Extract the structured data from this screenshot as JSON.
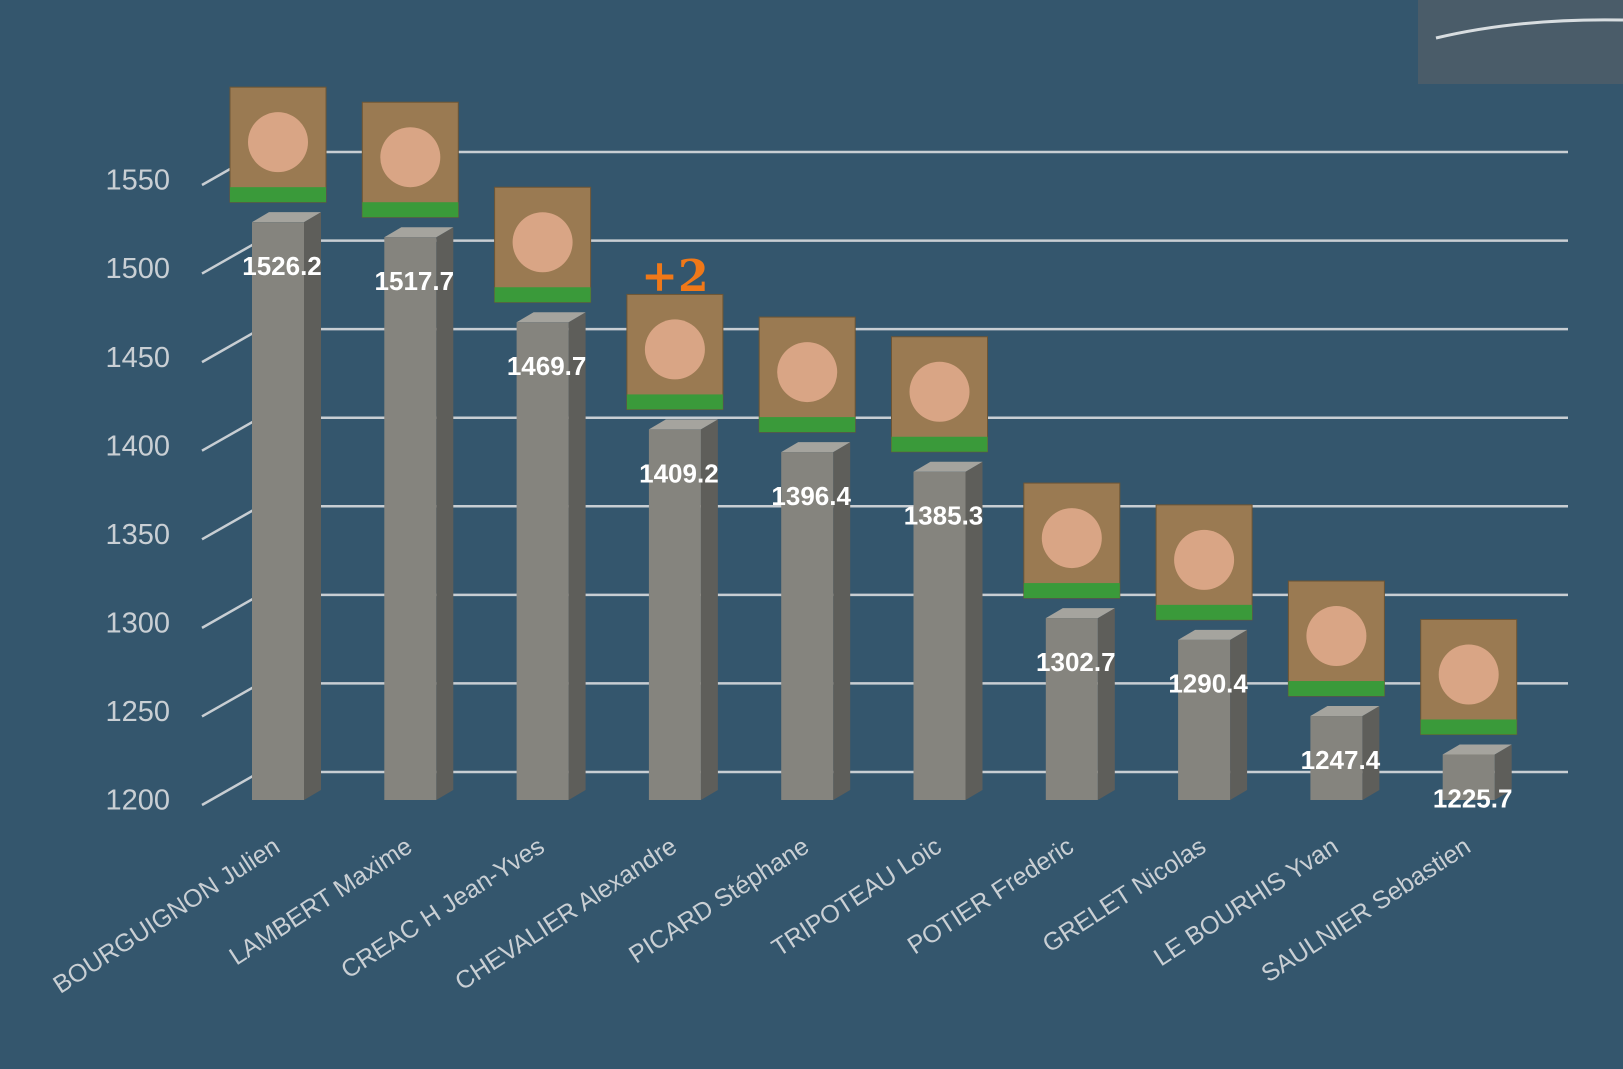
{
  "chart_data": {
    "type": "bar",
    "categories": [
      "BOURGUIGNON Julien",
      "LAMBERT Maxime",
      "CREAC H Jean-Yves",
      "CHEVALIER Alexandre",
      "PICARD Stéphane",
      "TRIPOTEAU Loic",
      "POTIER Frederic",
      "GRELET Nicolas",
      "LE BOURHIS Yvan",
      "SAULNIER Sebastien"
    ],
    "values": [
      1526.2,
      1517.7,
      1469.7,
      1409.2,
      1396.4,
      1385.3,
      1302.7,
      1290.4,
      1247.4,
      1225.7
    ],
    "color": "#85847e",
    "ylim": [
      1200,
      1550
    ],
    "yticks": [
      1200,
      1250,
      1300,
      1350,
      1400,
      1450,
      1500,
      1550
    ],
    "grid": true,
    "annotation": "+2"
  }
}
